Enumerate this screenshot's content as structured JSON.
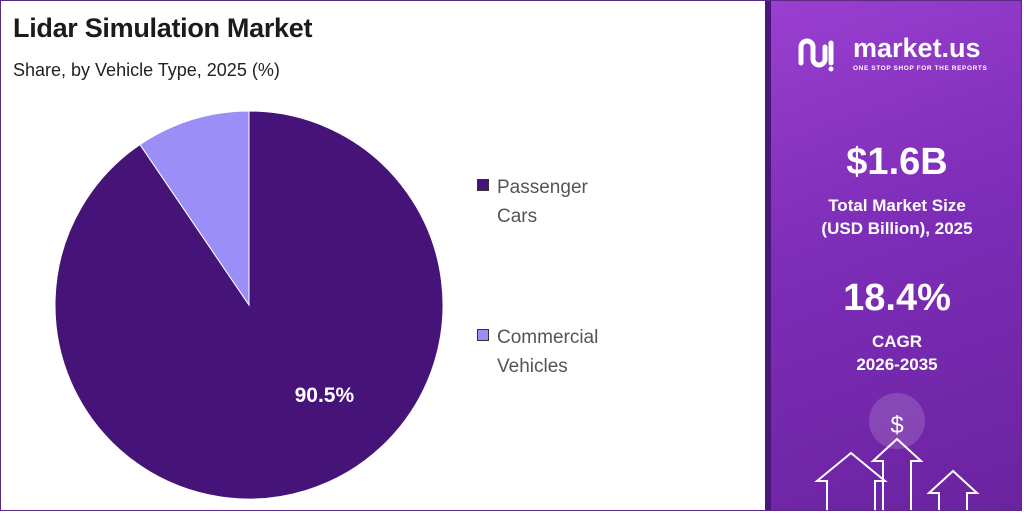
{
  "chart_data": {
    "type": "pie",
    "title": "Lidar Simulation Market",
    "subtitle": "Share, by Vehicle Type, 2025 (%)",
    "slices": [
      {
        "label": "Passenger Cars",
        "value": 90.5,
        "display": "90.5%",
        "color": "#461478"
      },
      {
        "label": "Commercial Vehicles",
        "value": 9.5,
        "display": "",
        "color": "#9b8ff7"
      }
    ],
    "legend_position": "right"
  },
  "legend": {
    "items": [
      {
        "label": "Passenger Cars",
        "color": "#461478"
      },
      {
        "label": "Commercial Vehicles",
        "color": "#9b8ff7"
      }
    ]
  },
  "brand": {
    "name": "market.us",
    "tagline": "ONE STOP SHOP FOR THE REPORTS"
  },
  "stats": {
    "market_size_value": "$1.6B",
    "market_size_label_1": "Total Market Size",
    "market_size_label_2": "(USD Billion), 2025",
    "cagr_value": "18.4%",
    "cagr_label_1": "CAGR",
    "cagr_label_2": "2026-2035"
  },
  "decoration": {
    "dollar_symbol": "$"
  },
  "colors": {
    "panel_top": "#9a3fd0",
    "panel_bottom": "#6a239f"
  }
}
